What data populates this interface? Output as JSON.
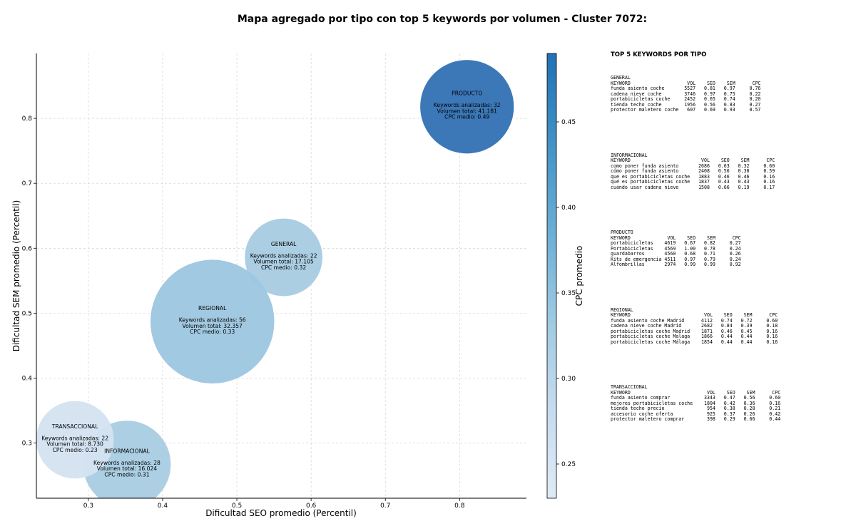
{
  "chart_data": {
    "type": "scatter",
    "title": "Mapa agregado por tipo con top 5 keywords por volumen - Cluster 7072:",
    "xlabel": "Dificultad SEO promedio (Percentil)",
    "ylabel": "Dificultad SEM promedio (Percentil)",
    "xlim": [
      0.23,
      0.89
    ],
    "ylim": [
      0.215,
      0.9
    ],
    "xticks": [
      "0.3",
      "0.4",
      "0.5",
      "0.6",
      "0.7",
      "0.8"
    ],
    "yticks": [
      "0.3",
      "0.4",
      "0.5",
      "0.6",
      "0.7",
      "0.8"
    ],
    "grid": true,
    "colorbar": {
      "label": "CPC promedio",
      "range": [
        0.23,
        0.49
      ],
      "ticks": [
        "0.25",
        "0.30",
        "0.35",
        "0.40",
        "0.45"
      ],
      "colormap": [
        "#deebf7",
        "#c6dbef",
        "#9ecae1",
        "#6baed6",
        "#4292c6",
        "#2171b5"
      ]
    },
    "points": [
      {
        "type": "PRODUCTO",
        "x": 0.81,
        "y": 0.818,
        "cpc": 0.49,
        "keywords": 32,
        "volume": "41.181",
        "line1": "Keywords analizadas: 32",
        "line2": "Volumen total: 41.181",
        "line3": "CPC medio: 0.49",
        "color": "#3171b4"
      },
      {
        "type": "GENERAL",
        "x": 0.563,
        "y": 0.586,
        "cpc": 0.32,
        "keywords": 22,
        "volume": "17.105",
        "line1": "Keywords analizadas: 22",
        "line2": "Volumen total: 17.105",
        "line3": "CPC medio: 0.32",
        "color": "#a6cbe2"
      },
      {
        "type": "REGIONAL",
        "x": 0.467,
        "y": 0.487,
        "cpc": 0.33,
        "keywords": 56,
        "volume": "32.357",
        "line1": "Keywords analizadas: 56",
        "line2": "Volumen total: 32.357",
        "line3": "CPC medio: 0.33",
        "color": "#9dc6e0"
      },
      {
        "type": "INFORMACIONAL",
        "x": 0.352,
        "y": 0.267,
        "cpc": 0.31,
        "keywords": 28,
        "volume": "16.024",
        "line1": "Keywords analizadas: 28",
        "line2": "Volumen total: 16.024",
        "line3": "CPC medio: 0.31",
        "color": "#a8cce3"
      },
      {
        "type": "TRANSACCIONAL",
        "x": 0.282,
        "y": 0.305,
        "cpc": 0.23,
        "keywords": 22,
        "volume": "8.730",
        "line1": "Keywords analizadas: 22",
        "line2": "Volumen total: 8.730",
        "line3": "CPC medio: 0.23",
        "color": "#d4e3f1"
      }
    ]
  },
  "panel": {
    "title": "TOP 5 KEYWORDS POR TIPO",
    "groups": [
      {
        "name": "GENERAL",
        "text": "KEYWORD                    VOL    SEO    SEM      CPC\nfunda asiento coche       5527   0.81   0.97     0.76\ncadena nieve coche        3746   0.97   0.75     0.22\nportabicicletas coche     2452   0.65   0.74     0.20\ntienda techo coche        1956   0.56   0.83     0.27\nprotector maletero coche   607   0.69   0.93     0.57"
      },
      {
        "name": "INFORMACIONAL",
        "text": "KEYWORD                         VOL    SEO    SEM      CPC\ncomo poner funda asiento       2686   0.63   0.32     0.60\ncómo poner funda asiento       2408   0.56   0.30     0.59\nque es portabicicletas coche   1883   0.46   0.46     0.16\nqué es portabicicletas coche   1837   0.43   0.43     0.16\ncuándo usar cadena nieve       1508   0.66   0.19     0.17"
      },
      {
        "name": "PRODUCTO",
        "text": "KEYWORD             VOL    SEO    SEM      CPC\nportabicicletas    4619   0.67   0.82     0.27\nPortabicicletas    4569   1.00   0.78     0.24\nguardabarros       4560   0.68   0.71     0.26\nKits de emergencia 4511   0.97   0.79     0.24\nAlfombrillas       2974   0.99   0.99     0.92"
      },
      {
        "name": "REGIONAL",
        "text": "KEYWORD                          VOL    SEO    SEM      CPC\nfunda asiento coche Madrid      4112   0.74   0.72     0.60\ncadena nieve coche Madrid       2682   0.84   0.39     0.18\nportabicicletas coche Madrid    1871   0.46   0.45     0.16\nportabicicletas coche Malaga    1866   0.44   0.44     0.16\nportabicicletas coche Málaga    1854   0.44   0.44     0.16"
      },
      {
        "name": "TRANSACCIONAL",
        "text": "KEYWORD                           VOL    SEO    SEM      CPC\nfunda asiento comprar            3343   0.47   0.56     0.60\nmejores portabicicletas coche    1804   0.42   0.36     0.16\ntienda techo precio               954   0.38   0.28     0.21\naccesorio coche oferta            925   0.37   0.26     0.42\nprotector maletero comprar        398   0.29   0.66     0.44"
      }
    ]
  }
}
